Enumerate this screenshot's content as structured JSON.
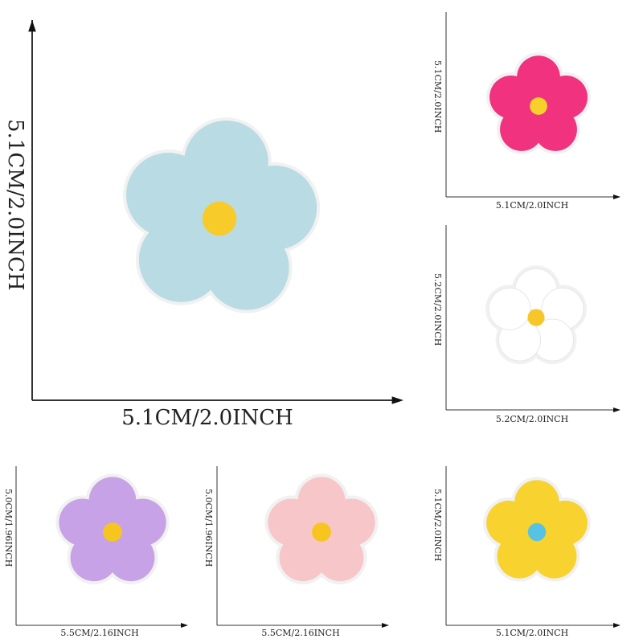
{
  "panels": [
    {
      "id": "main",
      "height_label": "5.1CM/2.0INCH",
      "width_label": "5.1CM/2.0INCH",
      "petal_color": "#b9dbe3",
      "center_color": "#f7cb2a"
    },
    {
      "id": "top-right",
      "height_label": "5.1CM/2.0INCH",
      "width_label": "5.1CM/2.0INCH",
      "petal_color": "#f0327f",
      "center_color": "#f7d12a"
    },
    {
      "id": "middle-right",
      "height_label": "5.2CM/2.0INCH",
      "width_label": "5.2CM/2.0INCH",
      "petal_color": "#ffffff",
      "center_color": "#f7c72a"
    },
    {
      "id": "bottom-left",
      "height_label": "5.0CM/1.96INCH",
      "width_label": "5.5CM/2.16INCH",
      "petal_color": "#c7a2e6",
      "center_color": "#f7c51f"
    },
    {
      "id": "bottom-middle",
      "height_label": "5.0CM/1.96INCH",
      "width_label": "5.5CM/2.16INCH",
      "petal_color": "#f7c6c9",
      "center_color": "#f7c51f"
    },
    {
      "id": "bottom-right",
      "height_label": "5.1CM/2.0INCH",
      "width_label": "5.1CM/2.0INCH",
      "petal_color": "#f8d22e",
      "center_color": "#58c2e4"
    }
  ]
}
